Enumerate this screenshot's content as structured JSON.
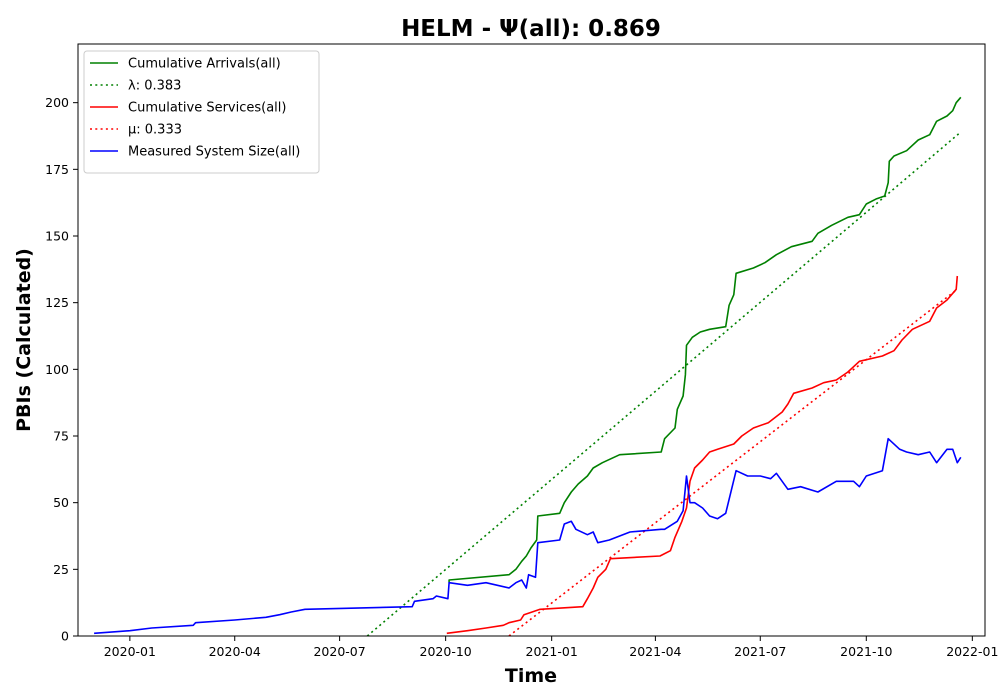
{
  "chart_data": {
    "type": "line",
    "title": "HELM -  Ψ(all): 0.869",
    "xlabel": "Time",
    "ylabel": "PBIs (Calculated)",
    "xlim": [
      "2019-11-17",
      "2022-01-12"
    ],
    "ylim": [
      0,
      222
    ],
    "x_ticks": [
      {
        "date": "2020-01-01",
        "label": "2020-01"
      },
      {
        "date": "2020-04-01",
        "label": "2020-04"
      },
      {
        "date": "2020-07-01",
        "label": "2020-07"
      },
      {
        "date": "2020-10-01",
        "label": "2020-10"
      },
      {
        "date": "2021-01-01",
        "label": "2021-01"
      },
      {
        "date": "2021-04-01",
        "label": "2021-04"
      },
      {
        "date": "2021-07-01",
        "label": "2021-07"
      },
      {
        "date": "2021-10-01",
        "label": "2021-10"
      },
      {
        "date": "2022-01-01",
        "label": "2022-01"
      }
    ],
    "y_ticks": [
      0,
      25,
      50,
      75,
      100,
      125,
      150,
      175,
      200
    ],
    "grid": false,
    "legend_position": "upper-left",
    "series": [
      {
        "name": "Cumulative Arrivals(all)",
        "style": "solid",
        "color": "#008000",
        "points": [
          [
            "2020-10-04",
            20
          ],
          [
            "2020-10-04",
            21
          ],
          [
            "2020-11-25",
            23
          ],
          [
            "2020-12-01",
            25
          ],
          [
            "2020-12-06",
            28
          ],
          [
            "2020-12-10",
            30
          ],
          [
            "2020-12-14",
            33
          ],
          [
            "2020-12-19",
            36
          ],
          [
            "2020-12-20",
            45
          ],
          [
            "2021-01-08",
            46
          ],
          [
            "2021-01-12",
            50
          ],
          [
            "2021-01-18",
            54
          ],
          [
            "2021-01-24",
            57
          ],
          [
            "2021-02-01",
            60
          ],
          [
            "2021-02-06",
            63
          ],
          [
            "2021-02-14",
            65
          ],
          [
            "2021-03-01",
            68
          ],
          [
            "2021-04-06",
            69
          ],
          [
            "2021-04-09",
            74
          ],
          [
            "2021-04-18",
            78
          ],
          [
            "2021-04-20",
            85
          ],
          [
            "2021-04-25",
            90
          ],
          [
            "2021-04-27",
            98
          ],
          [
            "2021-04-28",
            109
          ],
          [
            "2021-05-03",
            112
          ],
          [
            "2021-05-10",
            114
          ],
          [
            "2021-05-18",
            115
          ],
          [
            "2021-06-01",
            116
          ],
          [
            "2021-06-04",
            124
          ],
          [
            "2021-06-08",
            128
          ],
          [
            "2021-06-10",
            136
          ],
          [
            "2021-06-25",
            138
          ],
          [
            "2021-07-05",
            140
          ],
          [
            "2021-07-15",
            143
          ],
          [
            "2021-07-28",
            146
          ],
          [
            "2021-08-15",
            148
          ],
          [
            "2021-08-20",
            151
          ],
          [
            "2021-09-01",
            154
          ],
          [
            "2021-09-15",
            157
          ],
          [
            "2021-09-25",
            158
          ],
          [
            "2021-10-01",
            162
          ],
          [
            "2021-10-10",
            164
          ],
          [
            "2021-10-17",
            165
          ],
          [
            "2021-10-20",
            170
          ],
          [
            "2021-10-21",
            178
          ],
          [
            "2021-10-25",
            180
          ],
          [
            "2021-11-05",
            182
          ],
          [
            "2021-11-15",
            186
          ],
          [
            "2021-11-25",
            188
          ],
          [
            "2021-12-01",
            193
          ],
          [
            "2021-12-10",
            195
          ],
          [
            "2021-12-15",
            197
          ],
          [
            "2021-12-18",
            200
          ],
          [
            "2021-12-22",
            202
          ]
        ]
      },
      {
        "name": "λ: 0.383",
        "style": "dotted",
        "color": "#008000",
        "points": [
          [
            "2020-07-25",
            0
          ],
          [
            "2021-12-22",
            189
          ]
        ]
      },
      {
        "name": "Cumulative Services(all)",
        "style": "solid",
        "color": "#ff0000",
        "points": [
          [
            "2020-10-02",
            1
          ],
          [
            "2020-10-20",
            2
          ],
          [
            "2020-11-05",
            3
          ],
          [
            "2020-11-20",
            4
          ],
          [
            "2020-11-25",
            5
          ],
          [
            "2020-12-05",
            6
          ],
          [
            "2020-12-08",
            8
          ],
          [
            "2020-12-15",
            9
          ],
          [
            "2020-12-22",
            10
          ],
          [
            "2021-01-28",
            11
          ],
          [
            "2021-02-01",
            14
          ],
          [
            "2021-02-06",
            18
          ],
          [
            "2021-02-10",
            22
          ],
          [
            "2021-02-17",
            25
          ],
          [
            "2021-02-21",
            29
          ],
          [
            "2021-04-05",
            30
          ],
          [
            "2021-04-14",
            32
          ],
          [
            "2021-04-18",
            37
          ],
          [
            "2021-04-24",
            43
          ],
          [
            "2021-04-28",
            48
          ],
          [
            "2021-05-01",
            58
          ],
          [
            "2021-05-05",
            63
          ],
          [
            "2021-05-12",
            66
          ],
          [
            "2021-05-18",
            69
          ],
          [
            "2021-05-25",
            70
          ],
          [
            "2021-06-08",
            72
          ],
          [
            "2021-06-15",
            75
          ],
          [
            "2021-06-25",
            78
          ],
          [
            "2021-07-08",
            80
          ],
          [
            "2021-07-20",
            84
          ],
          [
            "2021-07-25",
            87
          ],
          [
            "2021-07-30",
            91
          ],
          [
            "2021-08-15",
            93
          ],
          [
            "2021-08-25",
            95
          ],
          [
            "2021-09-05",
            96
          ],
          [
            "2021-09-15",
            99
          ],
          [
            "2021-09-25",
            103
          ],
          [
            "2021-10-15",
            105
          ],
          [
            "2021-10-25",
            107
          ],
          [
            "2021-11-01",
            111
          ],
          [
            "2021-11-10",
            115
          ],
          [
            "2021-11-25",
            118
          ],
          [
            "2021-12-01",
            123
          ],
          [
            "2021-12-10",
            126
          ],
          [
            "2021-12-18",
            130
          ],
          [
            "2021-12-19",
            135
          ]
        ]
      },
      {
        "name": "μ: 0.333",
        "style": "dotted",
        "color": "#ff0000",
        "points": [
          [
            "2020-11-25",
            0
          ],
          [
            "2021-12-19",
            130
          ]
        ]
      },
      {
        "name": "Measured System Size(all)",
        "style": "solid",
        "color": "#0000ff",
        "points": [
          [
            "2019-12-01",
            1
          ],
          [
            "2020-01-01",
            2
          ],
          [
            "2020-01-20",
            3
          ],
          [
            "2020-02-25",
            4
          ],
          [
            "2020-02-27",
            5
          ],
          [
            "2020-04-01",
            6
          ],
          [
            "2020-04-28",
            7
          ],
          [
            "2020-05-10",
            8
          ],
          [
            "2020-05-20",
            9
          ],
          [
            "2020-06-01",
            10
          ],
          [
            "2020-09-02",
            11
          ],
          [
            "2020-09-04",
            13
          ],
          [
            "2020-09-20",
            14
          ],
          [
            "2020-09-23",
            15
          ],
          [
            "2020-10-03",
            14
          ],
          [
            "2020-10-04",
            20
          ],
          [
            "2020-10-20",
            19
          ],
          [
            "2020-11-05",
            20
          ],
          [
            "2020-11-25",
            18
          ],
          [
            "2020-12-01",
            20
          ],
          [
            "2020-12-06",
            21
          ],
          [
            "2020-12-10",
            18
          ],
          [
            "2020-12-12",
            23
          ],
          [
            "2020-12-18",
            22
          ],
          [
            "2020-12-20",
            35
          ],
          [
            "2021-01-08",
            36
          ],
          [
            "2021-01-12",
            42
          ],
          [
            "2021-01-18",
            43
          ],
          [
            "2021-01-22",
            40
          ],
          [
            "2021-02-01",
            38
          ],
          [
            "2021-02-06",
            39
          ],
          [
            "2021-02-10",
            35
          ],
          [
            "2021-02-20",
            36
          ],
          [
            "2021-03-10",
            39
          ],
          [
            "2021-04-06",
            40
          ],
          [
            "2021-04-09",
            40
          ],
          [
            "2021-04-20",
            43
          ],
          [
            "2021-04-25",
            47
          ],
          [
            "2021-04-28",
            60
          ],
          [
            "2021-05-01",
            50
          ],
          [
            "2021-05-05",
            50
          ],
          [
            "2021-05-12",
            48
          ],
          [
            "2021-05-18",
            45
          ],
          [
            "2021-05-25",
            44
          ],
          [
            "2021-06-01",
            46
          ],
          [
            "2021-06-10",
            62
          ],
          [
            "2021-06-20",
            60
          ],
          [
            "2021-07-01",
            60
          ],
          [
            "2021-07-10",
            59
          ],
          [
            "2021-07-15",
            61
          ],
          [
            "2021-07-25",
            55
          ],
          [
            "2021-08-05",
            56
          ],
          [
            "2021-08-20",
            54
          ],
          [
            "2021-09-05",
            58
          ],
          [
            "2021-09-20",
            58
          ],
          [
            "2021-09-25",
            56
          ],
          [
            "2021-10-01",
            60
          ],
          [
            "2021-10-15",
            62
          ],
          [
            "2021-10-20",
            74
          ],
          [
            "2021-10-30",
            70
          ],
          [
            "2021-11-05",
            69
          ],
          [
            "2021-11-15",
            68
          ],
          [
            "2021-11-25",
            69
          ],
          [
            "2021-12-01",
            65
          ],
          [
            "2021-12-10",
            70
          ],
          [
            "2021-12-15",
            70
          ],
          [
            "2021-12-19",
            65
          ],
          [
            "2021-12-22",
            67
          ]
        ]
      }
    ]
  }
}
